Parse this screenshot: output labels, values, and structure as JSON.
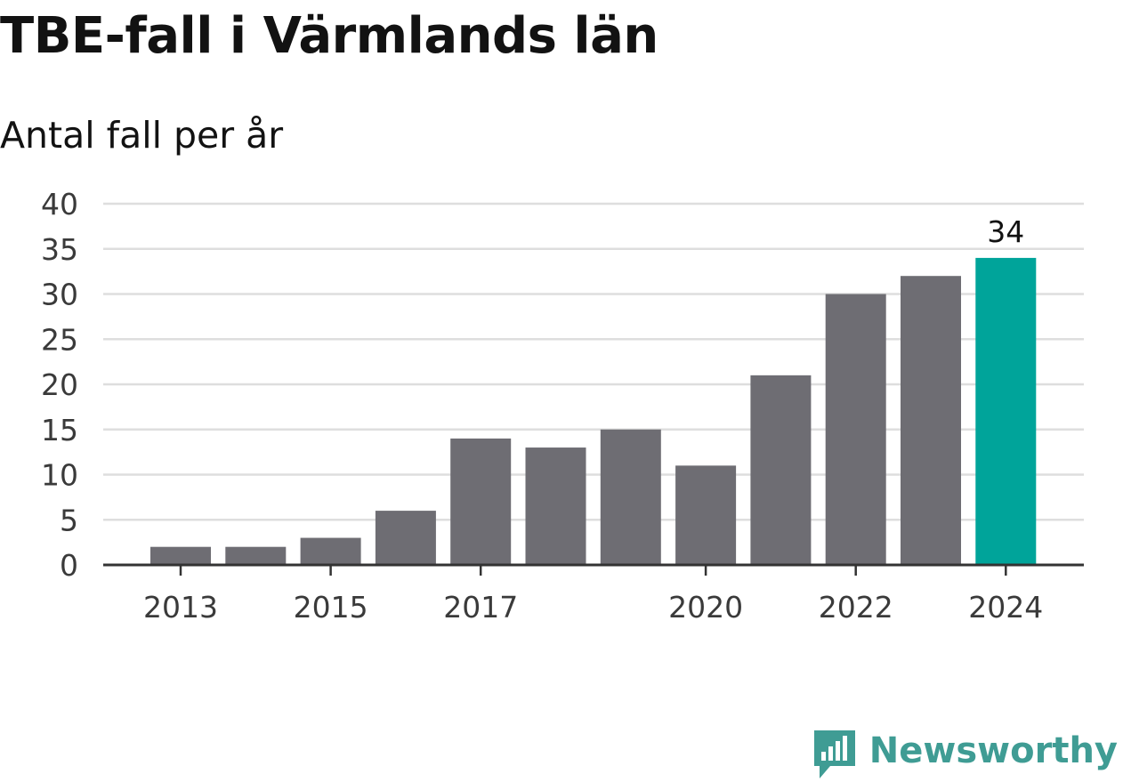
{
  "chart_data": {
    "type": "bar",
    "title": "TBE-fall i Värmlands län",
    "subtitle": "Antal fall per år",
    "xlabel": "",
    "ylabel": "",
    "categories": [
      "2013",
      "2014",
      "2015",
      "2016",
      "2017",
      "2018",
      "2019",
      "2020",
      "2021",
      "2022",
      "2023",
      "2024"
    ],
    "values": [
      2,
      2,
      3,
      6,
      14,
      13,
      15,
      11,
      21,
      30,
      32,
      34
    ],
    "x_tick_labels": [
      "2013",
      "2015",
      "2017",
      "2020",
      "2022",
      "2024"
    ],
    "y_ticks": [
      0,
      5,
      10,
      15,
      20,
      25,
      30,
      35,
      40
    ],
    "ylim": [
      0,
      40
    ],
    "grid": true,
    "highlight": {
      "category": "2024",
      "label": "34"
    },
    "colors": {
      "bar": "#6e6d73",
      "highlight": "#00a49a",
      "grid": "#dedede",
      "axis": "#333333",
      "text": "#121212"
    }
  },
  "branding": {
    "name": "Newsworthy",
    "logo_icon": "newsworthy-bar-chart-speech-bubble-icon",
    "color": "#3f9c94"
  }
}
